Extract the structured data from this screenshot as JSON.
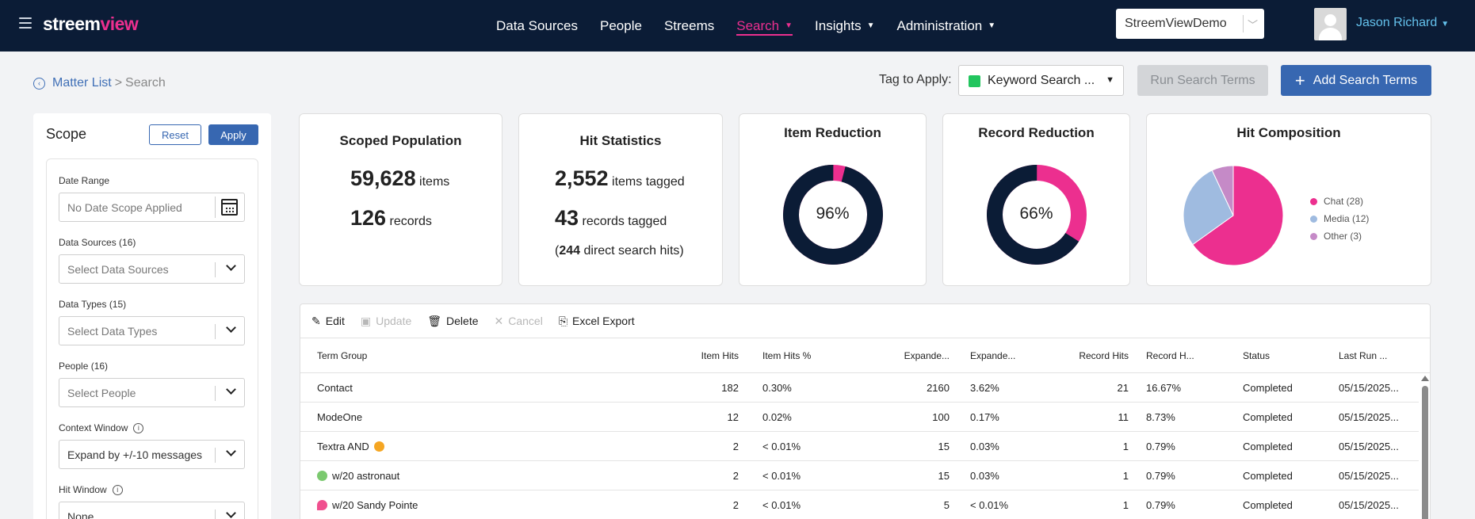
{
  "app": {
    "logo_a": "streem",
    "logo_b": "view"
  },
  "nav": {
    "items": [
      {
        "label": "Data Sources",
        "caret": false,
        "active": false
      },
      {
        "label": "People",
        "caret": false,
        "active": false
      },
      {
        "label": "Streems",
        "caret": false,
        "active": false
      },
      {
        "label": "Search",
        "caret": true,
        "active": true
      },
      {
        "label": "Insights",
        "caret": true,
        "active": false
      },
      {
        "label": "Administration",
        "caret": true,
        "active": false
      }
    ],
    "tenant": "StreemViewDemo",
    "user": "Jason Richard"
  },
  "breadcrumb": {
    "link": "Matter List",
    "sep": ">",
    "current": "Search"
  },
  "actions": {
    "tag_label": "Tag to Apply:",
    "tag_value": "Keyword Search ...",
    "tag_color": "#22c55e",
    "run_label": "Run Search Terms",
    "add_label": "Add Search Terms"
  },
  "scope": {
    "title": "Scope",
    "reset": "Reset",
    "apply": "Apply",
    "date_label": "Date Range",
    "date_placeholder": "No Date Scope Applied",
    "sources_label": "Data Sources (16)",
    "sources_placeholder": "Select Data Sources",
    "types_label": "Data Types (15)",
    "types_placeholder": "Select Data Types",
    "people_label": "People (16)",
    "people_placeholder": "Select People",
    "context_label": "Context Window",
    "context_value": "Expand by +/-10 messages",
    "hit_label": "Hit Window",
    "hit_value": "None"
  },
  "stats": {
    "scoped": {
      "title": "Scoped Population",
      "items_num": "59,628",
      "items_unit": "items",
      "records_num": "126",
      "records_unit": "records"
    },
    "hits": {
      "title": "Hit Statistics",
      "items_num": "2,552",
      "items_unit": "items tagged",
      "records_num": "43",
      "records_unit": "records tagged",
      "direct_pre": "(",
      "direct_num": "244",
      "direct_unit": "direct search hits)"
    },
    "item_reduction": {
      "title": "Item Reduction",
      "label": "96%",
      "value": 0.96
    },
    "record_reduction": {
      "title": "Record Reduction",
      "label": "66%",
      "value": 0.66
    },
    "composition": {
      "title": "Hit Composition",
      "slices": [
        {
          "label": "Chat (28)",
          "value": 28,
          "color": "#ec2f8f"
        },
        {
          "label": "Media (12)",
          "value": 12,
          "color": "#9fbbe0"
        },
        {
          "label": "Other (3)",
          "value": 3,
          "color": "#c58ac7"
        }
      ]
    }
  },
  "toolbar": {
    "edit": "Edit",
    "update": "Update",
    "delete": "Delete",
    "cancel": "Cancel",
    "export": "Excel Export"
  },
  "table": {
    "headers": [
      "Term Group",
      "Item Hits",
      "Item Hits %",
      "Expande...",
      "Expande...",
      "Record Hits",
      "Record H...",
      "Status",
      "Last Run ..."
    ],
    "rows": [
      {
        "term": "Contact",
        "emoji": "",
        "item_hits": "182",
        "item_pct": "0.30%",
        "exp1": "2160",
        "exp2": "3.62%",
        "rec_hits": "21",
        "rec_pct": "16.67%",
        "status": "Completed",
        "last_run": "05/15/2025..."
      },
      {
        "term": "ModeOne",
        "emoji": "",
        "item_hits": "12",
        "item_pct": "0.02%",
        "exp1": "100",
        "exp2": "0.17%",
        "rec_hits": "11",
        "rec_pct": "8.73%",
        "status": "Completed",
        "last_run": "05/15/2025..."
      },
      {
        "term": "Textra AND",
        "emoji": "after",
        "item_hits": "2",
        "item_pct": "< 0.01%",
        "exp1": "15",
        "exp2": "0.03%",
        "rec_hits": "1",
        "rec_pct": "0.79%",
        "status": "Completed",
        "last_run": "05/15/2025..."
      },
      {
        "term": "w/20 astronaut",
        "emoji": "before-green",
        "item_hits": "2",
        "item_pct": "< 0.01%",
        "exp1": "15",
        "exp2": "0.03%",
        "rec_hits": "1",
        "rec_pct": "0.79%",
        "status": "Completed",
        "last_run": "05/15/2025..."
      },
      {
        "term": "w/20 Sandy Pointe",
        "emoji": "before-pink",
        "item_hits": "2",
        "item_pct": "< 0.01%",
        "exp1": "5",
        "exp2": "< 0.01%",
        "rec_hits": "1",
        "rec_pct": "0.79%",
        "status": "Completed",
        "last_run": "05/15/2025..."
      }
    ]
  }
}
